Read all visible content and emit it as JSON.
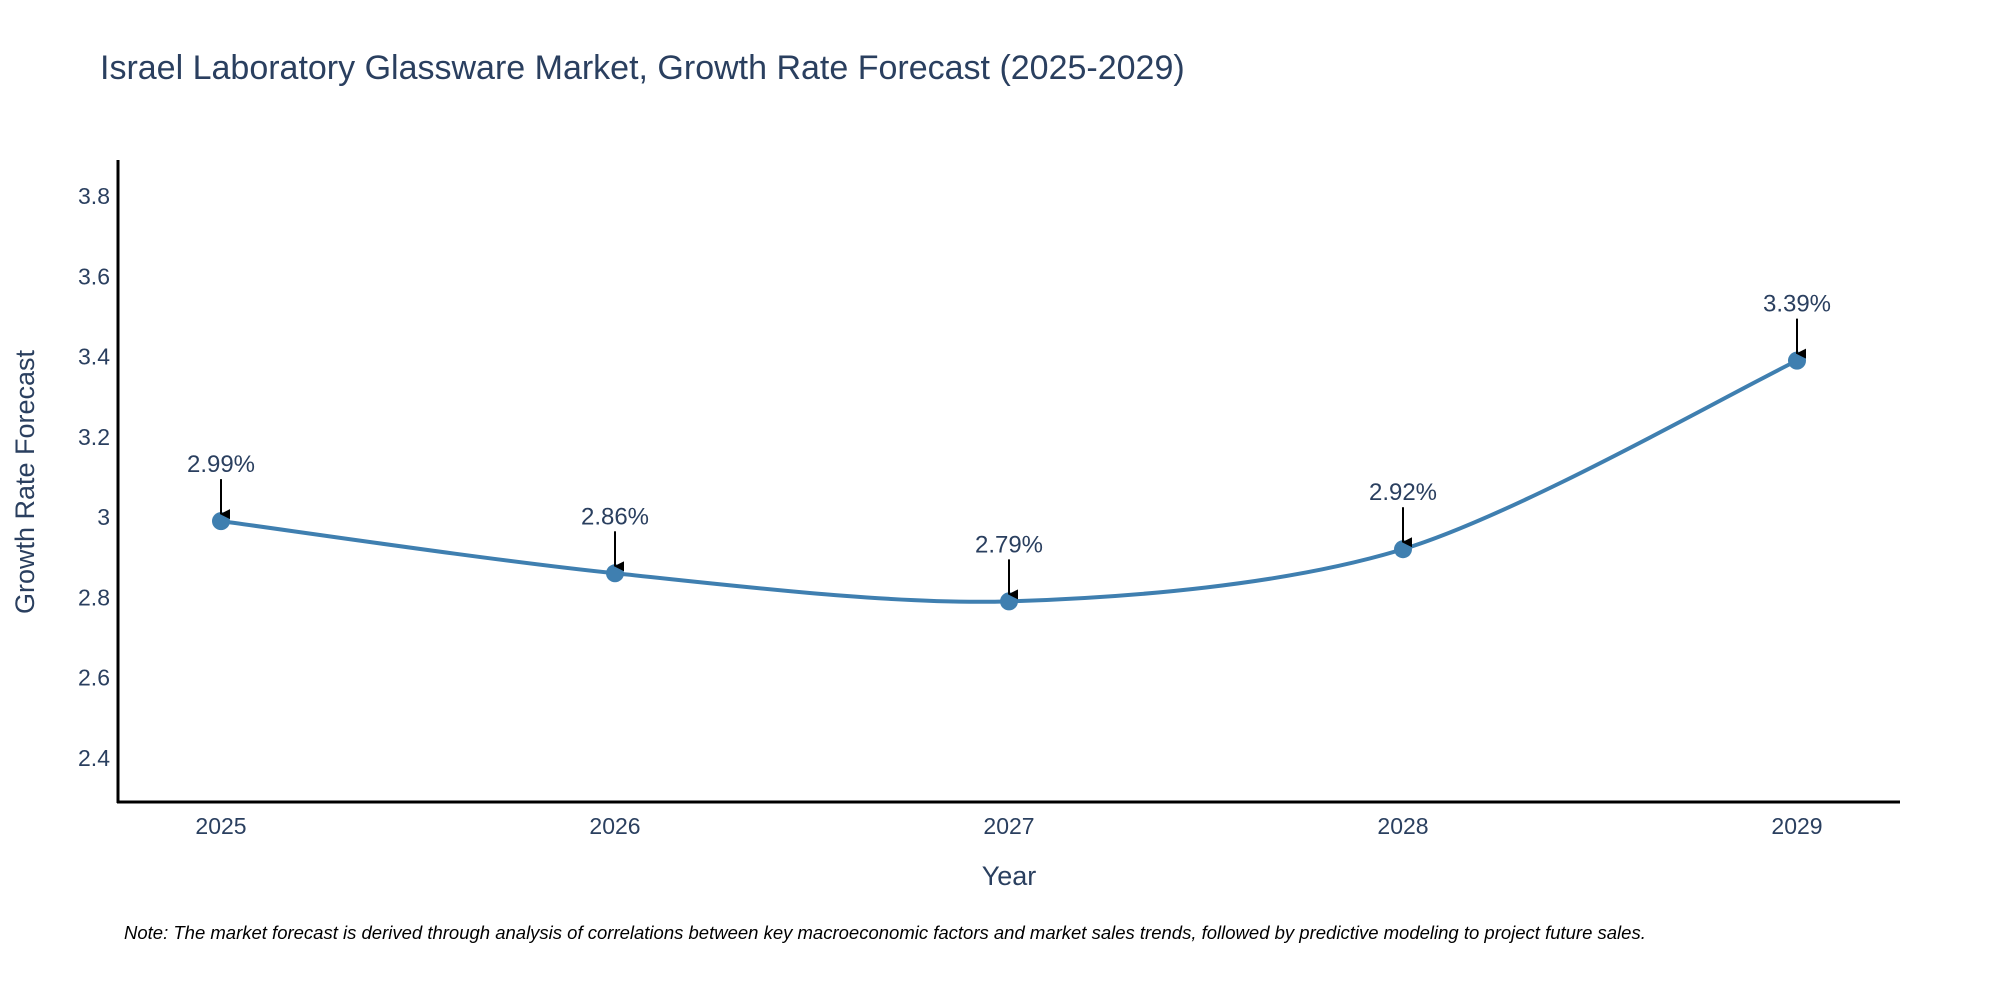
{
  "chart_data": {
    "type": "line",
    "title": "Israel Laboratory Glassware Market, Growth Rate Forecast (2025-2029)",
    "xlabel": "Year",
    "ylabel": "Growth Rate Forecast",
    "categories": [
      "2025",
      "2026",
      "2027",
      "2028",
      "2029"
    ],
    "series": [
      {
        "name": "Growth Rate Forecast",
        "values": [
          2.99,
          2.86,
          2.79,
          2.92,
          3.39
        ],
        "color": "#3f7fb0"
      }
    ],
    "data_labels": [
      "2.99%",
      "2.86%",
      "2.79%",
      "2.92%",
      "3.39%"
    ],
    "yticks": [
      2.4,
      2.6,
      2.8,
      3,
      3.2,
      3.4,
      3.6,
      3.8
    ],
    "ytick_labels": [
      "2.4",
      "2.6",
      "2.8",
      "3",
      "3.2",
      "3.4",
      "3.6",
      "3.8"
    ],
    "ylim": [
      2.29,
      3.89
    ],
    "grid": false,
    "line_shape": "spline",
    "note": "Note: The market forecast is derived through analysis of correlations between key macroeconomic factors and market sales trends, followed by predictive modeling to project future sales."
  }
}
